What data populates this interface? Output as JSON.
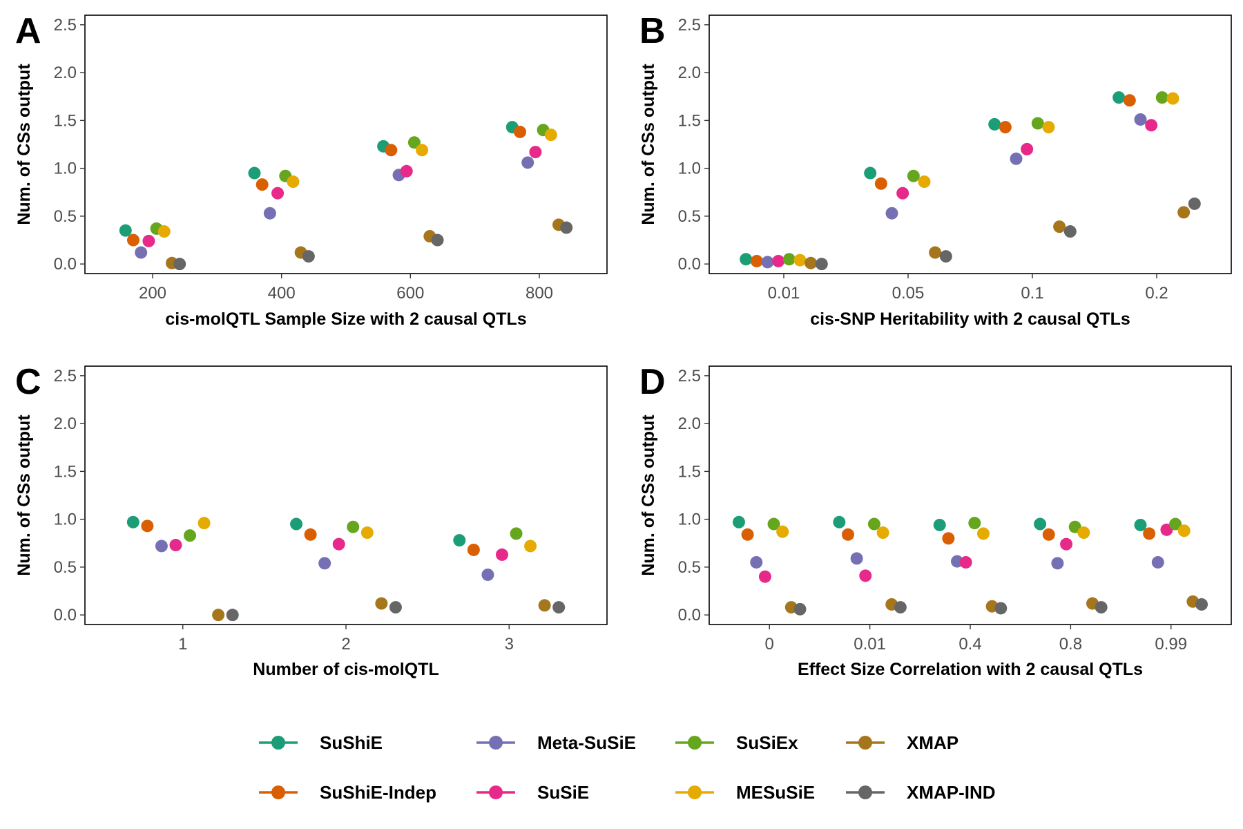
{
  "legend": {
    "items": [
      {
        "name": "SuShiE",
        "color": "#1B9E77"
      },
      {
        "name": "SuShiE-Indep",
        "color": "#D95F02"
      },
      {
        "name": "Meta-SuSiE",
        "color": "#7570B3"
      },
      {
        "name": "SuSiE",
        "color": "#E7298A"
      },
      {
        "name": "SuSiEx",
        "color": "#66A61E"
      },
      {
        "name": "MESuSiE",
        "color": "#E6AB02"
      },
      {
        "name": "XMAP",
        "color": "#A6761D"
      },
      {
        "name": "XMAP-IND",
        "color": "#666666"
      }
    ]
  },
  "chart_data": [
    {
      "panel": "A",
      "type": "scatter",
      "xlabel": "cis-molQTL Sample Size with 2 causal QTLs",
      "ylabel": "Num. of CSs output",
      "xaxis": "continuous",
      "xlim": [
        95,
        905
      ],
      "xticks": [
        {
          "value": 200,
          "label": "200"
        },
        {
          "value": 400,
          "label": "400"
        },
        {
          "value": 600,
          "label": "600"
        },
        {
          "value": 800,
          "label": "800"
        }
      ],
      "ylim": [
        -0.1,
        2.6
      ],
      "yticks": [
        0.0,
        0.5,
        1.0,
        1.5,
        2.0,
        2.5
      ],
      "positions": [
        200,
        400,
        600,
        800
      ],
      "series": [
        {
          "name": "SuShiE",
          "values": [
            0.35,
            0.95,
            1.23,
            1.43
          ]
        },
        {
          "name": "SuShiE-Indep",
          "values": [
            0.25,
            0.83,
            1.19,
            1.38
          ]
        },
        {
          "name": "Meta-SuSiE",
          "values": [
            0.12,
            0.53,
            0.93,
            1.06
          ]
        },
        {
          "name": "SuSiE",
          "values": [
            0.24,
            0.74,
            0.97,
            1.17
          ]
        },
        {
          "name": "SuSiEx",
          "values": [
            0.37,
            0.92,
            1.27,
            1.4
          ]
        },
        {
          "name": "MESuSiE",
          "values": [
            0.34,
            0.86,
            1.19,
            1.35
          ]
        },
        {
          "name": "XMAP",
          "values": [
            0.01,
            0.12,
            0.29,
            0.41
          ]
        },
        {
          "name": "XMAP-IND",
          "values": [
            0.0,
            0.08,
            0.25,
            0.38
          ]
        }
      ]
    },
    {
      "panel": "B",
      "type": "scatter",
      "xlabel": "cis-SNP Heritability with 2 causal QTLs",
      "ylabel": "Num. of CSs output",
      "xaxis": "discrete",
      "categories": [
        "0.01",
        "0.05",
        "0.1",
        "0.2"
      ],
      "ylim": [
        -0.1,
        2.6
      ],
      "yticks": [
        0.0,
        0.5,
        1.0,
        1.5,
        2.0,
        2.5
      ],
      "series": [
        {
          "name": "SuShiE",
          "values": [
            0.05,
            0.95,
            1.46,
            1.74
          ]
        },
        {
          "name": "SuShiE-Indep",
          "values": [
            0.03,
            0.84,
            1.43,
            1.71
          ]
        },
        {
          "name": "Meta-SuSiE",
          "values": [
            0.02,
            0.53,
            1.1,
            1.51
          ]
        },
        {
          "name": "SuSiE",
          "values": [
            0.03,
            0.74,
            1.2,
            1.45
          ]
        },
        {
          "name": "SuSiEx",
          "values": [
            0.05,
            0.92,
            1.47,
            1.74
          ]
        },
        {
          "name": "MESuSiE",
          "values": [
            0.04,
            0.86,
            1.43,
            1.73
          ]
        },
        {
          "name": "XMAP",
          "values": [
            0.01,
            0.12,
            0.39,
            0.54
          ]
        },
        {
          "name": "XMAP-IND",
          "values": [
            0.0,
            0.08,
            0.34,
            0.63
          ]
        }
      ]
    },
    {
      "panel": "C",
      "type": "scatter",
      "xlabel": "Number of cis-molQTL",
      "ylabel": "Num. of CSs output",
      "xaxis": "discrete",
      "categories": [
        "1",
        "2",
        "3"
      ],
      "ylim": [
        -0.1,
        2.6
      ],
      "yticks": [
        0.0,
        0.5,
        1.0,
        1.5,
        2.0,
        2.5
      ],
      "series": [
        {
          "name": "SuShiE",
          "values": [
            0.97,
            0.95,
            0.78
          ]
        },
        {
          "name": "SuShiE-Indep",
          "values": [
            0.93,
            0.84,
            0.68
          ]
        },
        {
          "name": "Meta-SuSiE",
          "values": [
            0.72,
            0.54,
            0.42
          ]
        },
        {
          "name": "SuSiE",
          "values": [
            0.73,
            0.74,
            0.63
          ]
        },
        {
          "name": "SuSiEx",
          "values": [
            0.83,
            0.92,
            0.85
          ]
        },
        {
          "name": "MESuSiE",
          "values": [
            0.96,
            0.86,
            0.72
          ]
        },
        {
          "name": "XMAP",
          "values": [
            0.0,
            0.12,
            0.1
          ]
        },
        {
          "name": "XMAP-IND",
          "values": [
            0.0,
            0.08,
            0.08
          ]
        }
      ]
    },
    {
      "panel": "D",
      "type": "scatter",
      "xlabel": "Effect Size Correlation with 2 causal QTLs",
      "ylabel": "Num. of CSs output",
      "xaxis": "discrete",
      "categories": [
        "0",
        "0.01",
        "0.4",
        "0.8",
        "0.99"
      ],
      "ylim": [
        -0.1,
        2.6
      ],
      "yticks": [
        0.0,
        0.5,
        1.0,
        1.5,
        2.0,
        2.5
      ],
      "series": [
        {
          "name": "SuShiE",
          "values": [
            0.97,
            0.97,
            0.94,
            0.95,
            0.94
          ]
        },
        {
          "name": "SuShiE-Indep",
          "values": [
            0.84,
            0.84,
            0.8,
            0.84,
            0.85
          ]
        },
        {
          "name": "Meta-SuSiE",
          "values": [
            0.55,
            0.59,
            0.56,
            0.54,
            0.55
          ]
        },
        {
          "name": "SuSiE",
          "values": [
            0.4,
            0.41,
            0.55,
            0.74,
            0.89
          ]
        },
        {
          "name": "SuSiEx",
          "values": [
            0.95,
            0.95,
            0.96,
            0.92,
            0.95
          ]
        },
        {
          "name": "MESuSiE",
          "values": [
            0.87,
            0.86,
            0.85,
            0.86,
            0.88
          ]
        },
        {
          "name": "XMAP",
          "values": [
            0.08,
            0.11,
            0.09,
            0.12,
            0.14
          ]
        },
        {
          "name": "XMAP-IND",
          "values": [
            0.06,
            0.08,
            0.07,
            0.08,
            0.11
          ]
        }
      ]
    }
  ]
}
